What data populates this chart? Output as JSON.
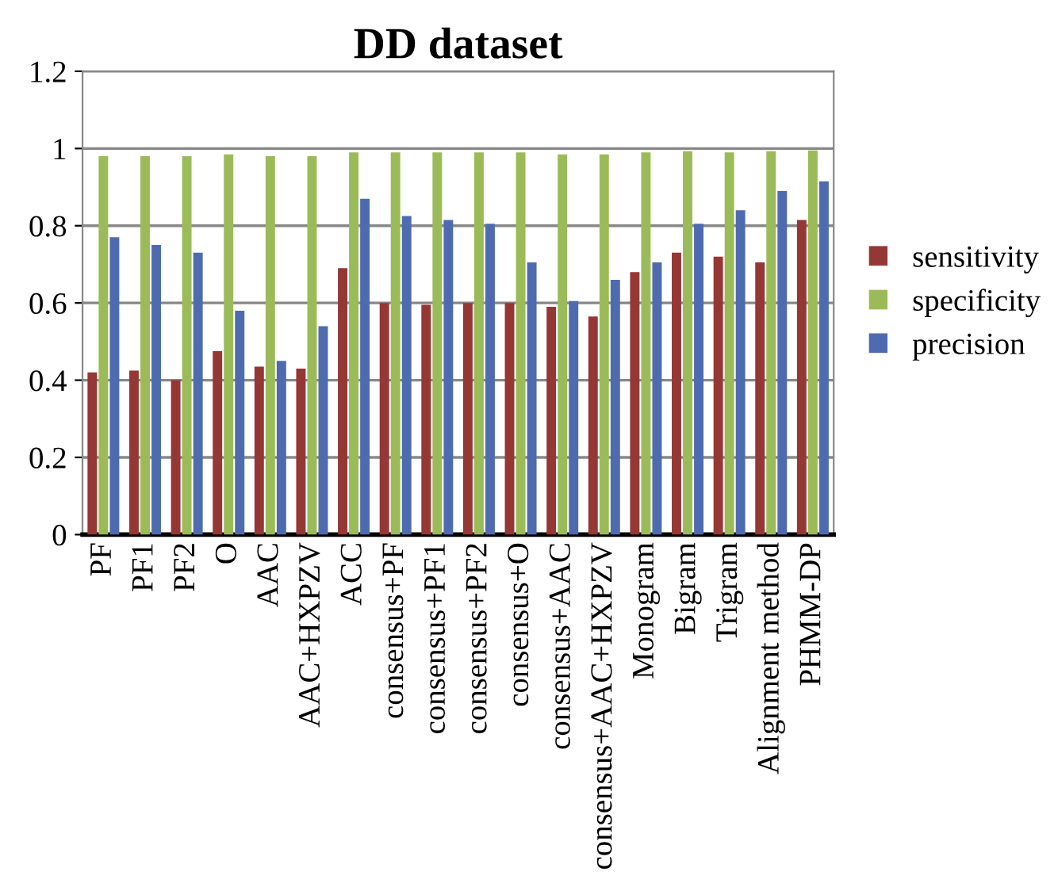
{
  "chart_data": {
    "type": "bar",
    "title": "DD dataset",
    "categories": [
      "PF",
      "PF1",
      "PF2",
      "O",
      "AAC",
      "AAC+HXPZV",
      "ACC",
      "consensus+PF",
      "consensus+PF1",
      "consensus+PF2",
      "consensus+O",
      "consensus+AAC",
      "consensus+AAC+HXPZV",
      "Monogram",
      "Bigram",
      "Trigram",
      "Alignment method",
      "PHMM-DP"
    ],
    "series": [
      {
        "name": "sensitivity",
        "color": "#953735",
        "values": [
          0.42,
          0.425,
          0.4,
          0.475,
          0.435,
          0.43,
          0.69,
          0.6,
          0.595,
          0.6,
          0.6,
          0.59,
          0.565,
          0.68,
          0.73,
          0.72,
          0.705,
          0.815
        ]
      },
      {
        "name": "specificity",
        "color": "#9bbb59",
        "values": [
          0.98,
          0.98,
          0.98,
          0.985,
          0.98,
          0.98,
          0.99,
          0.99,
          0.99,
          0.99,
          0.99,
          0.985,
          0.985,
          0.99,
          0.993,
          0.99,
          0.993,
          0.995
        ]
      },
      {
        "name": "precision",
        "color": "#4f6bb0",
        "values": [
          0.77,
          0.75,
          0.73,
          0.58,
          0.45,
          0.54,
          0.87,
          0.825,
          0.815,
          0.805,
          0.705,
          0.605,
          0.66,
          0.705,
          0.805,
          0.84,
          0.89,
          0.915
        ]
      }
    ],
    "ylim": [
      0,
      1.2
    ],
    "yticks": [
      0,
      0.2,
      0.4,
      0.6,
      0.8,
      1,
      1.2
    ],
    "grid": "y",
    "legend": "right"
  }
}
